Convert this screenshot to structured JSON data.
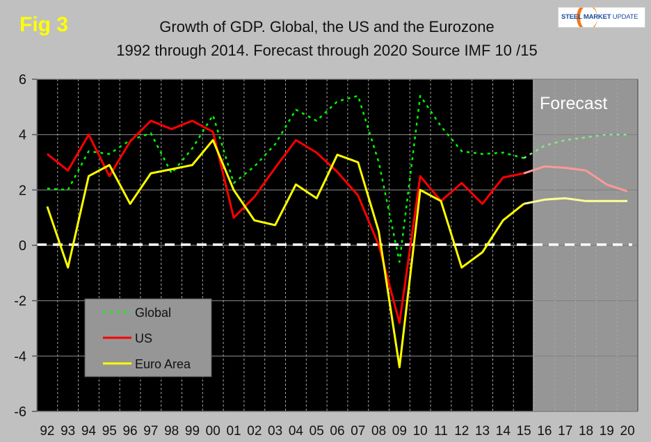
{
  "figure_label": "Fig 3",
  "logo": {
    "bold_text": "STEEL MARKET",
    "light_text": "UPDATE"
  },
  "colors": {
    "global": "#00ff00",
    "us": "#ff0000",
    "euro": "#ffff00",
    "global_forecast": "#88e888",
    "us_forecast": "#ff9999",
    "euro_forecast": "#ffff99",
    "plot_bg": "#000000",
    "forecast_bg": "#969696",
    "page_bg": "#c0c0c0"
  },
  "chart_data": {
    "type": "line",
    "title": "Growth of GDP. Global, the US and the Eurozone",
    "subtitle": "1992 through 2014. Forecast through 2020 Source IMF 10 /15",
    "xlabel": "",
    "ylabel": "",
    "ylim": [
      -6,
      6
    ],
    "yticks": [
      -6,
      -4,
      -2,
      0,
      2,
      4,
      6
    ],
    "grid": true,
    "reference_line": {
      "y": 0,
      "style": "dashed",
      "color": "#ffffff"
    },
    "forecast_region": {
      "from": "16",
      "to": "20",
      "label": "Forecast"
    },
    "legend": {
      "position": "lower-left",
      "entries": [
        "Global",
        "US",
        "Euro Area"
      ]
    },
    "categories": [
      "92",
      "93",
      "94",
      "95",
      "96",
      "97",
      "98",
      "99",
      "00",
      "01",
      "02",
      "03",
      "04",
      "05",
      "06",
      "07",
      "08",
      "09",
      "10",
      "11",
      "12",
      "13",
      "14",
      "15",
      "16",
      "17",
      "18",
      "19",
      "20"
    ],
    "series": [
      {
        "name": "Global",
        "style": "dotted",
        "values": [
          2.05,
          2.0,
          3.4,
          3.3,
          3.8,
          4.05,
          2.6,
          3.5,
          4.7,
          2.25,
          2.85,
          3.65,
          4.9,
          4.5,
          5.2,
          5.4,
          3.0,
          -0.6,
          5.4,
          4.3,
          3.4,
          3.3,
          3.35,
          3.15,
          3.6,
          3.8,
          3.9,
          4.0,
          4.0
        ]
      },
      {
        "name": "US",
        "style": "solid",
        "values": [
          3.3,
          2.7,
          4.0,
          2.5,
          3.75,
          4.5,
          4.2,
          4.5,
          4.1,
          1.0,
          1.75,
          2.8,
          3.8,
          3.35,
          2.65,
          1.8,
          0.0,
          -2.8,
          2.5,
          1.6,
          2.25,
          1.5,
          2.45,
          2.6,
          2.85,
          2.8,
          2.7,
          2.2,
          1.95
        ]
      },
      {
        "name": "Euro Area",
        "style": "solid",
        "values": [
          1.4,
          -0.8,
          2.5,
          2.9,
          1.5,
          2.6,
          2.75,
          2.9,
          3.8,
          2.0,
          0.9,
          0.73,
          2.2,
          1.7,
          3.27,
          3.0,
          0.5,
          -4.4,
          2.0,
          1.6,
          -0.8,
          -0.25,
          0.9,
          1.5,
          1.65,
          1.7,
          1.6,
          1.6,
          1.6
        ]
      }
    ]
  }
}
